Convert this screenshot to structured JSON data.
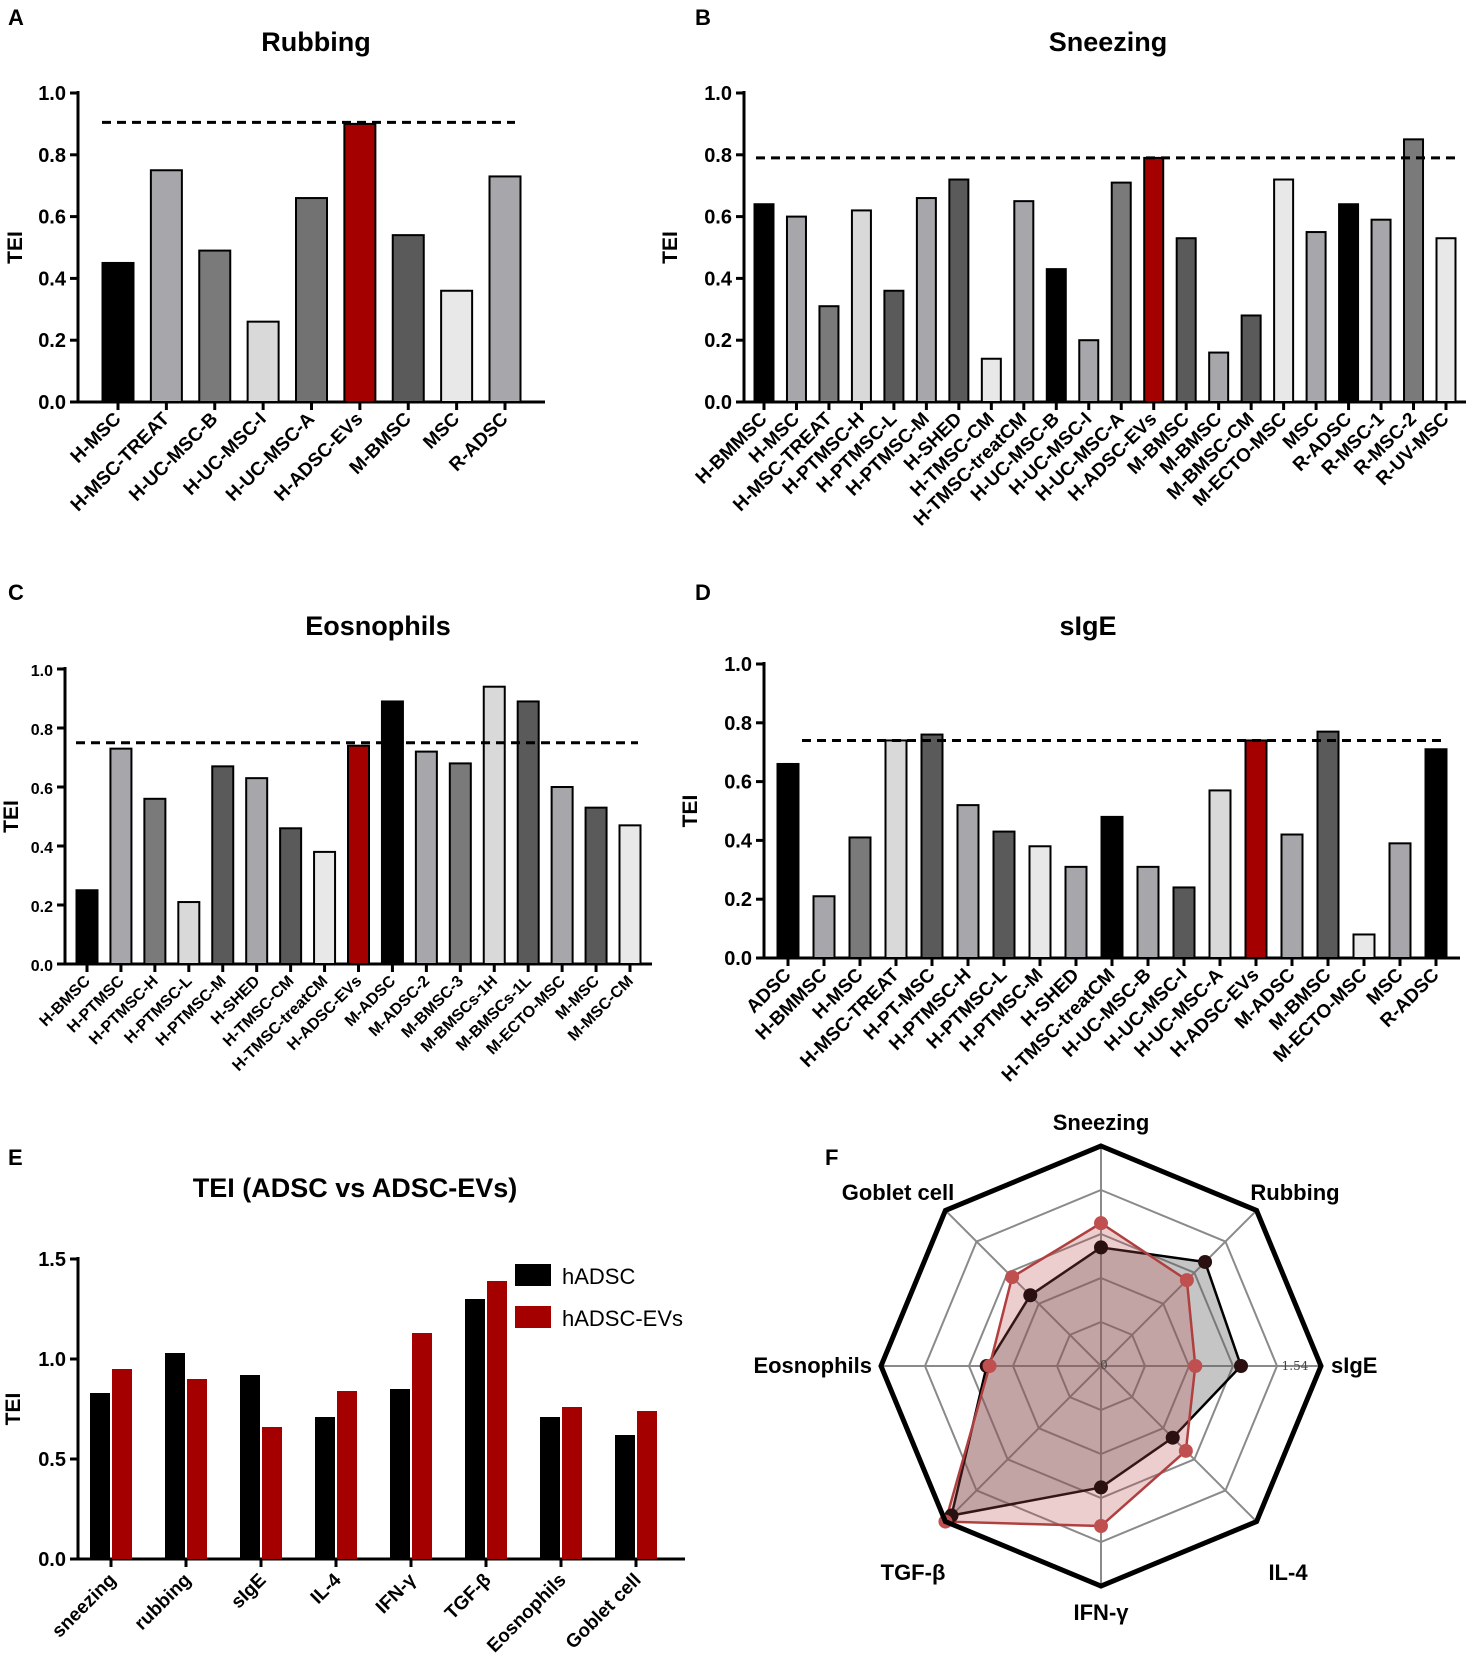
{
  "chart_data": [
    {
      "panel": "A",
      "type": "bar",
      "title": "Rubbing",
      "ylabel": "TEI",
      "ylim": [
        0,
        1.0
      ],
      "yticks": [
        "0.0",
        "0.2",
        "0.4",
        "0.6",
        "0.8",
        "1.0"
      ],
      "reference_line": 0.905,
      "categories": [
        "H-MSC",
        "H-MSC-TREAT",
        "H-UC-MSC-B",
        "H-UC-MSC-I",
        "H-UC-MSC-A",
        "H-ADSC-EVs",
        "M-BMSC",
        "MSC",
        "R-ADSC"
      ],
      "values": [
        0.45,
        0.75,
        0.49,
        0.26,
        0.66,
        0.9,
        0.54,
        0.36,
        0.73
      ],
      "colors": [
        "#000000",
        "#a6a6ab",
        "#7a7a7a",
        "#d9d9d9",
        "#727272",
        "#a50000",
        "#5a5a5a",
        "#e8e8e8",
        "#a6a6ab"
      ]
    },
    {
      "panel": "B",
      "type": "bar",
      "title": "Sneezing",
      "ylabel": "TEI",
      "ylim": [
        0,
        1.0
      ],
      "yticks": [
        "0.0",
        "0.2",
        "0.4",
        "0.6",
        "0.8",
        "1.0"
      ],
      "reference_line": 0.79,
      "categories": [
        "H-BMMSC",
        "H-MSC",
        "H-MSC-TREAT",
        "H-PTMSC-H",
        "H-PTMSC-L",
        "H-PTMSC-M",
        "H-SHED",
        "H-TMSC-CM",
        "H-TMSC-treatCM",
        "H-UC-MSC-B",
        "H-UC-MSC-I",
        "H-UC-MSC-A",
        "H-ADSC-EVs",
        "M-BMSC",
        "M-BMSC",
        "M-BMSC-CM",
        "M-ECTO-MSC",
        "MSC",
        "R-ADSC",
        "R-MSC-1",
        "R-MSC-2",
        "R-UV-MSC"
      ],
      "values": [
        0.64,
        0.6,
        0.31,
        0.62,
        0.36,
        0.66,
        0.72,
        0.14,
        0.65,
        0.43,
        0.2,
        0.71,
        0.79,
        0.53,
        0.16,
        0.28,
        0.72,
        0.55,
        0.64,
        0.59,
        0.85,
        0.53
      ],
      "colors": [
        "#000000",
        "#a6a6ab",
        "#7a7a7a",
        "#d9d9d9",
        "#5a5a5a",
        "#a6a6ab",
        "#5a5a5a",
        "#e8e8e8",
        "#a6a6ab",
        "#000000",
        "#a6a6ab",
        "#7a7a7a",
        "#a50000",
        "#5a5a5a",
        "#a6a6ab",
        "#5a5a5a",
        "#e8e8e8",
        "#a6a6ab",
        "#000000",
        "#a6a6ab",
        "#7a7a7a",
        "#e8e8e8"
      ]
    },
    {
      "panel": "C",
      "type": "bar",
      "title": "Eosnophils",
      "ylabel": "TEI",
      "ylim": [
        0,
        1.0
      ],
      "yticks": [
        "0.0",
        "0.2",
        "0.4",
        "0.6",
        "0.8",
        "1.0"
      ],
      "reference_line": 0.75,
      "categories": [
        "H-BMSC",
        "H-PTMSC",
        "H-PTMSC-H",
        "H-PTMSC-L",
        "H-PTMSC-M",
        "H-SHED",
        "H-TMSC-CM",
        "H-TMSC-treatCM",
        "H-ADSC-EVs",
        "M-ADSC",
        "M-ADSC-2",
        "M-BMSC-3",
        "M-BMSCs-1H",
        "M-BMSCs-1L",
        "M-ECTO-MSC",
        "M-MSC",
        "M-MSC-CM"
      ],
      "values": [
        0.25,
        0.73,
        0.56,
        0.21,
        0.67,
        0.63,
        0.46,
        0.38,
        0.74,
        0.89,
        0.72,
        0.68,
        0.94,
        0.89,
        0.6,
        0.53,
        0.47
      ],
      "colors": [
        "#000000",
        "#a6a6ab",
        "#7a7a7a",
        "#d9d9d9",
        "#5a5a5a",
        "#a6a6ab",
        "#5a5a5a",
        "#e8e8e8",
        "#a50000",
        "#000000",
        "#a6a6ab",
        "#7a7a7a",
        "#d9d9d9",
        "#5a5a5a",
        "#a6a6ab",
        "#5a5a5a",
        "#e8e8e8"
      ]
    },
    {
      "panel": "D",
      "type": "bar",
      "title": "sIgE",
      "ylabel": "TEI",
      "ylim": [
        0,
        1.0
      ],
      "yticks": [
        "0.0",
        "0.2",
        "0.4",
        "0.6",
        "0.8",
        "1.0"
      ],
      "reference_line": 0.74,
      "categories": [
        "ADSC",
        "H-BMMSC",
        "H-MSC",
        "H-MSC-TREAT",
        "H-PT-MSC",
        "H-PTMSC-H",
        "H-PTMSC-L",
        "H-PTMSC-M",
        "H-SHED",
        "H-TMSC-treatCM",
        "H-UC-MSC-B",
        "H-UC-MSC-I",
        "H-UC-MSC-A",
        "H-ADSC-EVs",
        "M-ADSC",
        "M-BMSC",
        "M-ECTO-MSC",
        "MSC",
        "R-ADSC"
      ],
      "values": [
        0.66,
        0.21,
        0.41,
        0.74,
        0.76,
        0.52,
        0.43,
        0.38,
        0.31,
        0.48,
        0.31,
        0.24,
        0.57,
        0.74,
        0.42,
        0.77,
        0.08,
        0.39,
        0.71
      ],
      "colors": [
        "#000000",
        "#a6a6ab",
        "#7a7a7a",
        "#d9d9d9",
        "#5a5a5a",
        "#a6a6ab",
        "#5a5a5a",
        "#e8e8e8",
        "#a6a6ab",
        "#000000",
        "#a6a6ab",
        "#5a5a5a",
        "#d9d9d9",
        "#a50000",
        "#a6a6ab",
        "#5a5a5a",
        "#e8e8e8",
        "#a6a6ab",
        "#000000"
      ]
    },
    {
      "panel": "E",
      "type": "bar",
      "title": "TEI (ADSC vs ADSC-EVs)",
      "ylabel": "TEI",
      "ylim": [
        0,
        1.5
      ],
      "yticks": [
        "0.0",
        "0.5",
        "1.0",
        "1.5"
      ],
      "categories": [
        "sneezing",
        "rubbing",
        "sIgE",
        "IL-4",
        "IFN-γ",
        "TGF-β",
        "Eosnophils",
        "Goblet cell"
      ],
      "series": [
        {
          "name": "hADSC",
          "color": "#000000",
          "values": [
            0.83,
            1.03,
            0.92,
            0.71,
            0.85,
            1.3,
            0.71,
            0.62
          ]
        },
        {
          "name": "hADSC-EVs",
          "color": "#a50000",
          "values": [
            0.95,
            0.9,
            0.66,
            0.84,
            1.13,
            1.39,
            0.76,
            0.74
          ]
        }
      ],
      "legend_position": "top-right"
    },
    {
      "panel": "F",
      "type": "radar",
      "axes": [
        "Sneezing",
        "Rubbing",
        "sIgE",
        "IL-4",
        "IFN-γ",
        "TGF-β",
        "Eosnophils",
        "Goblet cell"
      ],
      "range": [
        0,
        1.54
      ],
      "range_labels": [
        "0",
        "1.54"
      ],
      "series": [
        {
          "name": "hADSC",
          "color": "#000000",
          "values": [
            0.83,
            1.03,
            0.98,
            0.71,
            0.85,
            1.48,
            0.8,
            0.7
          ]
        },
        {
          "name": "hADSC-EVs",
          "color": "#b04040",
          "values": [
            1.0,
            0.85,
            0.66,
            0.84,
            1.12,
            1.54,
            0.78,
            0.88
          ]
        }
      ]
    }
  ]
}
